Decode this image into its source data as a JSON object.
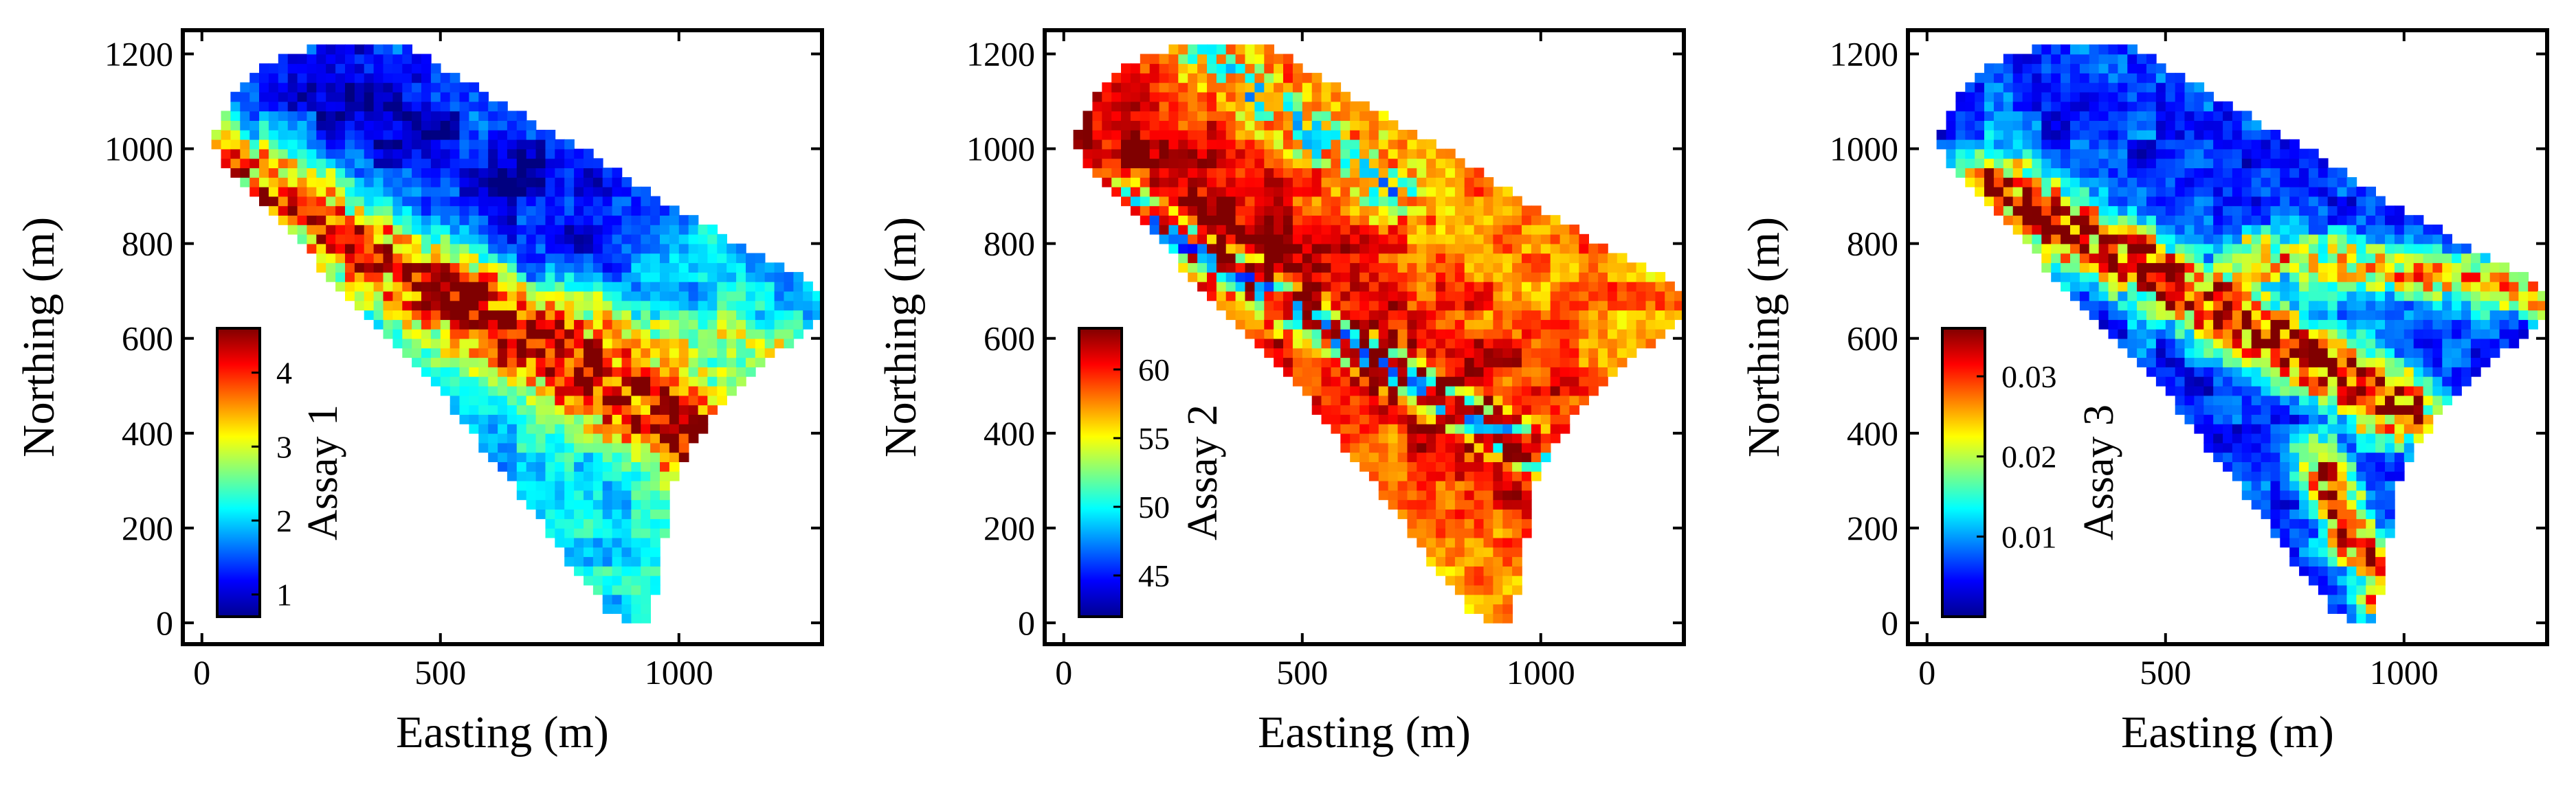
{
  "chart_data": [
    {
      "type": "heatmap",
      "panel": "Assay 1",
      "xlabel": "Easting (m)",
      "ylabel": "Northing (m)",
      "xlim": [
        -40,
        1300
      ],
      "ylim": [
        -45,
        1250
      ],
      "xticks": [
        0,
        500,
        1000
      ],
      "yticks": [
        0,
        200,
        400,
        600,
        800,
        1000,
        1200
      ],
      "colorbar": {
        "title": "Assay 1",
        "min": 0.7,
        "max": 4.6,
        "ticks": [
          1,
          2,
          3,
          4
        ]
      },
      "boundary": [
        [
          30,
          1040
        ],
        [
          60,
          1100
        ],
        [
          120,
          1165
        ],
        [
          190,
          1205
        ],
        [
          300,
          1220
        ],
        [
          430,
          1215
        ],
        [
          520,
          1160
        ],
        [
          640,
          1090
        ],
        [
          780,
          1010
        ],
        [
          900,
          935
        ],
        [
          1000,
          870
        ],
        [
          1080,
          825
        ],
        [
          1200,
          760
        ],
        [
          1280,
          720
        ],
        [
          1300,
          690
        ],
        [
          1290,
          640
        ],
        [
          1220,
          580
        ],
        [
          1170,
          540
        ],
        [
          1110,
          480
        ],
        [
          1060,
          420
        ],
        [
          1020,
          360
        ],
        [
          990,
          300
        ],
        [
          975,
          220
        ],
        [
          960,
          120
        ],
        [
          950,
          60
        ],
        [
          935,
          5
        ],
        [
          900,
          0
        ],
        [
          860,
          15
        ],
        [
          820,
          70
        ],
        [
          760,
          140
        ],
        [
          700,
          230
        ],
        [
          620,
          330
        ],
        [
          530,
          450
        ],
        [
          430,
          560
        ],
        [
          330,
          660
        ],
        [
          240,
          760
        ],
        [
          160,
          850
        ],
        [
          90,
          920
        ],
        [
          40,
          960
        ],
        [
          30,
          1000
        ]
      ],
      "anomaly_bands": [
        {
          "from": [
            60,
            970
          ],
          "to": [
            1050,
            380
          ],
          "width": 70,
          "peak": 4.4
        },
        {
          "from": [
            520,
            720
          ],
          "to": [
            1200,
            560
          ],
          "width": 45,
          "peak": 2.9
        }
      ],
      "background": 2.0,
      "depletion": {
        "from": [
          220,
          1160
        ],
        "to": [
          760,
          860
        ],
        "width": 120,
        "low": 0.8
      }
    },
    {
      "type": "heatmap",
      "panel": "Assay 2",
      "xlabel": "Easting (m)",
      "ylabel": "Northing (m)",
      "xlim": [
        -40,
        1300
      ],
      "ylim": [
        -45,
        1250
      ],
      "xticks": [
        0,
        500,
        1000
      ],
      "yticks": [
        0,
        200,
        400,
        600,
        800,
        1000,
        1200
      ],
      "colorbar": {
        "title": "Assay 2",
        "min": 42,
        "max": 63,
        "ticks": [
          45,
          50,
          55,
          60
        ]
      },
      "background": 57.5,
      "enrichment": {
        "from": [
          60,
          1060
        ],
        "to": [
          1000,
          330
        ],
        "width": 110,
        "peak": 62.5
      },
      "depletion_bands": [
        {
          "from": [
            120,
            880
          ],
          "to": [
            980,
            360
          ],
          "width": 35,
          "low": 47
        },
        {
          "from": [
            300,
            1200
          ],
          "to": [
            700,
            900
          ],
          "width": 40,
          "low": 49
        }
      ]
    },
    {
      "type": "heatmap",
      "panel": "Assay 3",
      "xlabel": "Easting (m)",
      "ylabel": "Northing (m)",
      "xlim": [
        -40,
        1300
      ],
      "ylim": [
        -45,
        1250
      ],
      "xticks": [
        0,
        500,
        1000
      ],
      "yticks": [
        0,
        200,
        400,
        600,
        800,
        1000,
        1200
      ],
      "colorbar": {
        "title": "Assay 3",
        "min": 0.0,
        "max": 0.036,
        "ticks": [
          0.01,
          0.02,
          0.03
        ]
      },
      "background": 0.006,
      "anomaly_bands": [
        {
          "from": [
            140,
            920
          ],
          "to": [
            1000,
            450
          ],
          "width": 55,
          "peak": 0.034
        },
        {
          "from": [
            820,
            330
          ],
          "to": [
            960,
            60
          ],
          "width": 40,
          "peak": 0.03
        },
        {
          "from": [
            700,
            780
          ],
          "to": [
            1280,
            700
          ],
          "width": 40,
          "peak": 0.024
        }
      ]
    }
  ]
}
